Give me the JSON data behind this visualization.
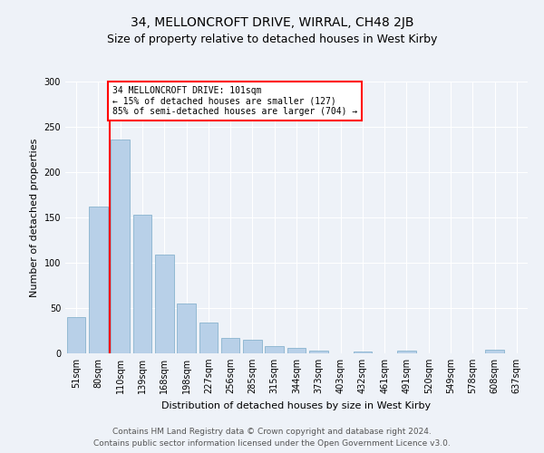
{
  "title": "34, MELLONCROFT DRIVE, WIRRAL, CH48 2JB",
  "subtitle": "Size of property relative to detached houses in West Kirby",
  "xlabel": "Distribution of detached houses by size in West Kirby",
  "ylabel": "Number of detached properties",
  "bar_color": "#b8d0e8",
  "bar_edge_color": "#7aaac8",
  "categories": [
    "51sqm",
    "80sqm",
    "110sqm",
    "139sqm",
    "168sqm",
    "198sqm",
    "227sqm",
    "256sqm",
    "285sqm",
    "315sqm",
    "344sqm",
    "373sqm",
    "403sqm",
    "432sqm",
    "461sqm",
    "491sqm",
    "520sqm",
    "549sqm",
    "578sqm",
    "608sqm",
    "637sqm"
  ],
  "values": [
    40,
    162,
    236,
    153,
    109,
    55,
    34,
    17,
    15,
    8,
    6,
    3,
    0,
    2,
    0,
    3,
    0,
    0,
    0,
    4,
    0
  ],
  "vline_x": 1.5,
  "annotation_texts": [
    "34 MELLONCROFT DRIVE: 101sqm",
    "← 15% of detached houses are smaller (127)",
    "85% of semi-detached houses are larger (704) →"
  ],
  "ylim": [
    0,
    300
  ],
  "yticks": [
    0,
    50,
    100,
    150,
    200,
    250,
    300
  ],
  "footer1": "Contains HM Land Registry data © Crown copyright and database right 2024.",
  "footer2": "Contains public sector information licensed under the Open Government Licence v3.0.",
  "background_color": "#eef2f8",
  "grid_color": "#ffffff",
  "title_fontsize": 10,
  "subtitle_fontsize": 9,
  "xlabel_fontsize": 8,
  "ylabel_fontsize": 8,
  "tick_fontsize": 7,
  "annot_fontsize": 7,
  "footer_fontsize": 6.5
}
